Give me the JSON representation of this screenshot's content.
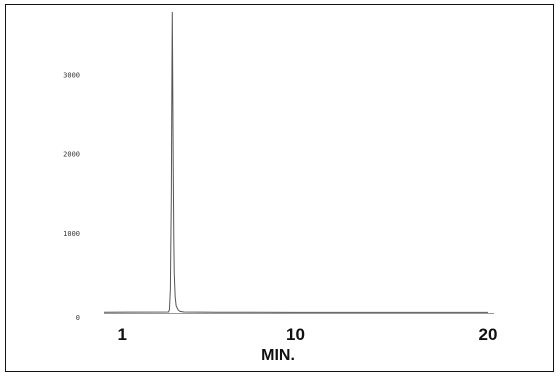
{
  "chart_data": {
    "type": "line",
    "title": "",
    "xlabel": "MIN.",
    "ylabel": "",
    "xlim": [
      0,
      20
    ],
    "ylim": [
      0,
      3800
    ],
    "x_ticks": [
      1,
      10,
      20
    ],
    "x_tick_labels": [
      "1",
      "10",
      "20"
    ],
    "y_ticks": [
      0,
      1000,
      2000,
      3000
    ],
    "y_tick_labels": [
      "0",
      "1000",
      "2000",
      "3000"
    ],
    "grid": false,
    "legend": "none",
    "line_color": "#555555",
    "series": [
      {
        "x": [
          0,
          3.4,
          3.45,
          3.5,
          3.55,
          3.58,
          3.6,
          3.62,
          3.65,
          3.68,
          3.7,
          3.75,
          3.8,
          3.9,
          4.0,
          4.2,
          6,
          10,
          15,
          20
        ],
        "y": [
          10,
          12,
          40,
          300,
          1500,
          3000,
          3800,
          3000,
          1800,
          900,
          500,
          200,
          90,
          40,
          20,
          12,
          10,
          8,
          8,
          8
        ]
      }
    ]
  }
}
